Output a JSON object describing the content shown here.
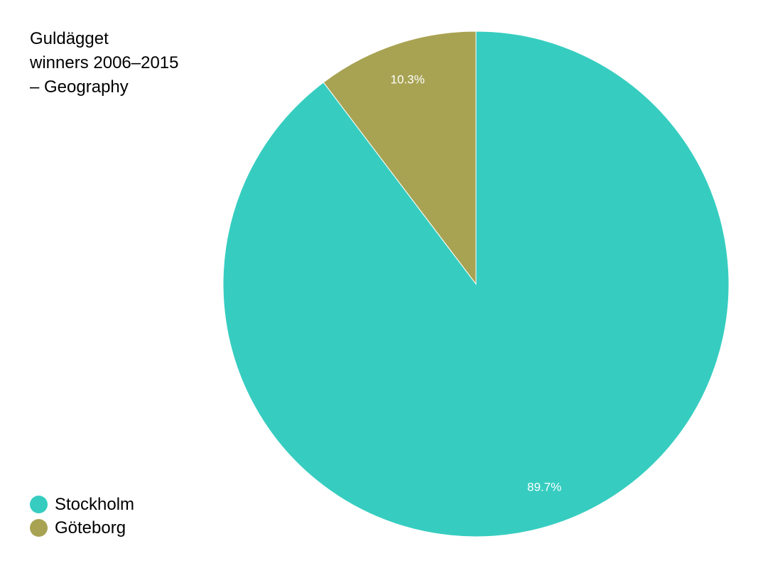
{
  "chart_data": {
    "type": "pie",
    "title_lines": [
      "Guldägget",
      "winners 2006–2015",
      "– Geography"
    ],
    "slices": [
      {
        "label": "Stockholm",
        "value": 89.7,
        "value_label": "89.7%",
        "color": "#36cdc0"
      },
      {
        "label": "Göteborg",
        "value": 10.3,
        "value_label": "10.3%",
        "color": "#a8a352"
      }
    ],
    "legend_position": "bottom-left",
    "slice_label_color": "#ffffff"
  }
}
